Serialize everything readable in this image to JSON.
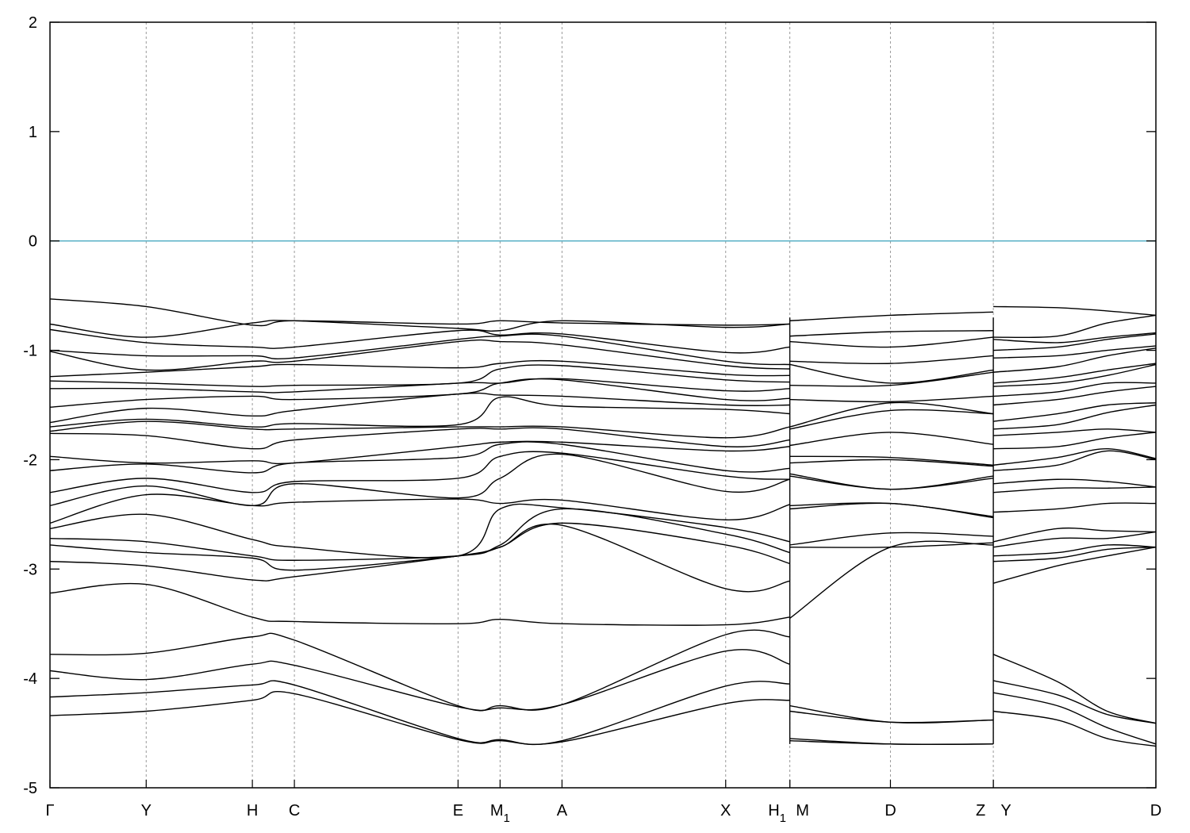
{
  "chart_data": {
    "type": "line",
    "title": "",
    "xlabel": "",
    "ylabel": "",
    "ylim": [
      -5,
      2
    ],
    "yticks": [
      -5,
      -4,
      -3,
      -2,
      -1,
      0,
      1,
      2
    ],
    "grid": "vertical dashed lines at high-symmetry points",
    "legend": "none",
    "fermi_level": {
      "y": 0,
      "color": "#5fb3c8"
    },
    "kpoints": [
      {
        "label": "Γ",
        "sub": "",
        "x": 0
      },
      {
        "label": "Y",
        "sub": "",
        "x": 0.087
      },
      {
        "label": "H",
        "sub": "",
        "x": 0.183
      },
      {
        "label": "C",
        "sub": "",
        "x": 0.221
      },
      {
        "label": "E",
        "sub": "",
        "x": 0.369
      },
      {
        "label": "M",
        "sub": "1",
        "x": 0.407
      },
      {
        "label": "A",
        "sub": "",
        "x": 0.463
      },
      {
        "label": "X",
        "sub": "",
        "x": 0.611
      },
      {
        "label": "H",
        "sub": "1",
        "x": 0.669
      },
      {
        "label": "M",
        "sub": "",
        "x": 0.669
      },
      {
        "label": "D",
        "sub": "",
        "x": 0.76
      },
      {
        "label": "Z",
        "sub": "",
        "x": 0.853
      },
      {
        "label": "Y",
        "sub": "",
        "x": 0.853
      },
      {
        "label": "D",
        "sub": "",
        "x": 1
      }
    ],
    "path_breaks": [
      0.669,
      0.853
    ],
    "segments": [
      {
        "name": "Γ–Y–H–C–E–M1–A–X–H1",
        "x": [
          0,
          0.087,
          0.183,
          0.221,
          0.369,
          0.407,
          0.463,
          0.611,
          0.669
        ],
        "bands": [
          [
            -0.53,
            -0.6,
            -0.77,
            -0.73,
            -0.76,
            -0.73,
            -0.75,
            -0.77,
            -0.76
          ],
          [
            -0.76,
            -0.88,
            -0.75,
            -0.73,
            -0.8,
            -0.82,
            -0.73,
            -0.79,
            -0.76
          ],
          [
            -0.81,
            -0.93,
            -0.97,
            -0.97,
            -0.82,
            -0.86,
            -0.85,
            -1.02,
            -0.97
          ],
          [
            -1,
            -1.05,
            -1.05,
            -1.07,
            -0.9,
            -0.87,
            -0.87,
            -1.1,
            -1.13
          ],
          [
            -1.01,
            -1.18,
            -1.1,
            -1.1,
            -0.92,
            -0.92,
            -0.95,
            -1.14,
            -1.17
          ],
          [
            -1.24,
            -1.2,
            -1.15,
            -1.13,
            -1.16,
            -1.12,
            -1.1,
            -1.22,
            -1.23
          ],
          [
            -1.28,
            -1.3,
            -1.33,
            -1.32,
            -1.3,
            -1.17,
            -1.14,
            -1.27,
            -1.29
          ],
          [
            -1.35,
            -1.35,
            -1.38,
            -1.38,
            -1.3,
            -1.3,
            -1.26,
            -1.37,
            -1.35
          ],
          [
            -1.52,
            -1.45,
            -1.42,
            -1.45,
            -1.4,
            -1.3,
            -1.27,
            -1.45,
            -1.44
          ],
          [
            -1.66,
            -1.53,
            -1.6,
            -1.55,
            -1.4,
            -1.41,
            -1.42,
            -1.5,
            -1.5
          ],
          [
            -1.7,
            -1.63,
            -1.7,
            -1.67,
            -1.68,
            -1.43,
            -1.51,
            -1.54,
            -1.58
          ],
          [
            -1.74,
            -1.65,
            -1.72,
            -1.72,
            -1.7,
            -1.7,
            -1.7,
            -1.8,
            -1.7
          ],
          [
            -1.76,
            -1.78,
            -1.9,
            -1.82,
            -1.72,
            -1.72,
            -1.72,
            -1.88,
            -1.82
          ],
          [
            -1.97,
            -2.03,
            -2.01,
            -2.03,
            -1.88,
            -1.84,
            -1.84,
            -1.92,
            -1.88
          ],
          [
            -2.1,
            -2.04,
            -2.12,
            -2.03,
            -1.98,
            -1.86,
            -1.86,
            -2.1,
            -2.08
          ],
          [
            -2.3,
            -2.17,
            -2.3,
            -2.2,
            -2.17,
            -1.97,
            -1.94,
            -2.15,
            -2.18
          ],
          [
            -2.42,
            -2.24,
            -2.42,
            -2.22,
            -2.35,
            -2.17,
            -1.95,
            -2.29,
            -2.18
          ],
          [
            -2.58,
            -2.32,
            -2.42,
            -2.39,
            -2.36,
            -2.4,
            -2.37,
            -2.55,
            -2.41
          ],
          [
            -2.63,
            -2.5,
            -2.73,
            -2.8,
            -2.88,
            -2.45,
            -2.44,
            -2.62,
            -2.75
          ],
          [
            -2.72,
            -2.75,
            -2.88,
            -2.92,
            -2.88,
            -2.78,
            -2.45,
            -2.68,
            -2.85
          ],
          [
            -2.78,
            -2.85,
            -2.9,
            -3.01,
            -2.88,
            -2.8,
            -2.58,
            -2.78,
            -2.95
          ],
          [
            -2.93,
            -2.97,
            -3.1,
            -3.07,
            -2.88,
            -2.8,
            -2.6,
            -3.18,
            -3.11
          ],
          [
            -3.22,
            -3.14,
            -3.44,
            -3.48,
            -3.5,
            -3.46,
            -3.5,
            -3.51,
            -3.44
          ],
          [
            -3.78,
            -3.77,
            -3.62,
            -3.65,
            -4.25,
            -4.25,
            -4.24,
            -3.6,
            -3.62
          ],
          [
            -3.93,
            -4.01,
            -3.87,
            -3.88,
            -4.26,
            -4.27,
            -4.24,
            -3.75,
            -3.87
          ],
          [
            -4.17,
            -4.13,
            -4.06,
            -4.06,
            -4.55,
            -4.56,
            -4.57,
            -4.07,
            -4.05
          ],
          [
            -4.34,
            -4.3,
            -4.2,
            -4.14,
            -4.56,
            -4.57,
            -4.58,
            -4.23,
            -4.2
          ]
        ]
      },
      {
        "name": "M–D–Z",
        "x": [
          0.669,
          0.76,
          0.853
        ],
        "bands": [
          [
            -0.73,
            -0.68,
            -0.65
          ],
          [
            -0.87,
            -0.83,
            -0.82
          ],
          [
            -0.92,
            -0.97,
            -0.88
          ],
          [
            -1.1,
            -1.12,
            -1.05
          ],
          [
            -1.13,
            -1.3,
            -1.18
          ],
          [
            -1.32,
            -1.32,
            -1.2
          ],
          [
            -1.45,
            -1.47,
            -1.42
          ],
          [
            -1.7,
            -1.48,
            -1.58
          ],
          [
            -1.72,
            -1.55,
            -1.58
          ],
          [
            -1.87,
            -1.75,
            -1.86
          ],
          [
            -1.97,
            -1.98,
            -2.05
          ],
          [
            -2.03,
            -2.0,
            -2.06
          ],
          [
            -2.13,
            -2.27,
            -2.15
          ],
          [
            -2.15,
            -2.27,
            -2.17
          ],
          [
            -2.42,
            -2.4,
            -2.52
          ],
          [
            -2.45,
            -2.4,
            -2.53
          ],
          [
            -2.78,
            -2.67,
            -2.7
          ],
          [
            -2.8,
            -2.8,
            -2.76
          ],
          [
            -3.45,
            -2.8,
            -2.78
          ],
          [
            -4.25,
            -4.4,
            -4.38
          ],
          [
            -4.3,
            -4.4,
            -4.38
          ],
          [
            -4.55,
            -4.6,
            -4.6
          ],
          [
            -4.57,
            -4.6,
            -4.6
          ]
        ]
      },
      {
        "name": "Y–D",
        "x": [
          0.853,
          0.911,
          0.956,
          1
        ],
        "bands": [
          [
            -0.6,
            -0.61,
            -0.64,
            -0.68
          ],
          [
            -0.88,
            -0.87,
            -0.75,
            -0.68
          ],
          [
            -0.9,
            -0.93,
            -0.88,
            -0.84
          ],
          [
            -1.0,
            -0.97,
            -0.9,
            -0.85
          ],
          [
            -1.07,
            -1.05,
            -1.0,
            -0.96
          ],
          [
            -1.2,
            -1.15,
            -1.05,
            -0.98
          ],
          [
            -1.3,
            -1.25,
            -1.18,
            -1.12
          ],
          [
            -1.33,
            -1.3,
            -1.23,
            -1.13
          ],
          [
            -1.42,
            -1.38,
            -1.3,
            -1.3
          ],
          [
            -1.5,
            -1.45,
            -1.38,
            -1.33
          ],
          [
            -1.65,
            -1.58,
            -1.5,
            -1.48
          ],
          [
            -1.72,
            -1.68,
            -1.57,
            -1.5
          ],
          [
            -1.78,
            -1.75,
            -1.72,
            -1.75
          ],
          [
            -1.9,
            -1.88,
            -1.8,
            -1.75
          ],
          [
            -2.05,
            -1.98,
            -1.9,
            -1.99
          ],
          [
            -2.1,
            -2.05,
            -1.92,
            -2.0
          ],
          [
            -2.22,
            -2.18,
            -2.2,
            -2.25
          ],
          [
            -2.3,
            -2.26,
            -2.26,
            -2.25
          ],
          [
            -2.48,
            -2.45,
            -2.4,
            -2.4
          ],
          [
            -2.75,
            -2.63,
            -2.65,
            -2.66
          ],
          [
            -2.8,
            -2.72,
            -2.72,
            -2.66
          ],
          [
            -2.88,
            -2.85,
            -2.78,
            -2.8
          ],
          [
            -2.93,
            -2.9,
            -2.82,
            -2.8
          ],
          [
            -3.13,
            -2.97,
            -2.88,
            -2.8
          ],
          [
            -3.78,
            -4.03,
            -4.3,
            -4.41
          ],
          [
            -4.02,
            -4.15,
            -4.33,
            -4.41
          ],
          [
            -4.13,
            -4.25,
            -4.45,
            -4.6
          ],
          [
            -4.3,
            -4.38,
            -4.55,
            -4.62
          ]
        ]
      }
    ]
  }
}
